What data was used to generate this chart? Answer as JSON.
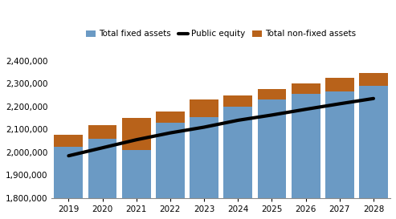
{
  "years": [
    2019,
    2020,
    2021,
    2022,
    2023,
    2024,
    2025,
    2026,
    2027,
    2028
  ],
  "fixed_assets": [
    2025000,
    2060000,
    2010000,
    2130000,
    2155000,
    2200000,
    2230000,
    2255000,
    2265000,
    2290000
  ],
  "non_fixed_assets": [
    50000,
    60000,
    140000,
    50000,
    75000,
    50000,
    45000,
    45000,
    60000,
    55000
  ],
  "public_equity": [
    1985000,
    2020000,
    2055000,
    2085000,
    2110000,
    2140000,
    2163000,
    2188000,
    2212000,
    2235000
  ],
  "fixed_color": "#6B9AC4",
  "non_fixed_color": "#B8621A",
  "equity_color": "#000000",
  "bg_color": "#FFFFFF",
  "ylim": [
    1800000,
    2450000
  ],
  "yticks": [
    1800000,
    1900000,
    2000000,
    2100000,
    2200000,
    2300000,
    2400000
  ],
  "legend_labels": [
    "Total non-fixed assets",
    "Total fixed assets",
    "Public equity"
  ],
  "figsize": [
    4.93,
    2.73
  ],
  "dpi": 100
}
